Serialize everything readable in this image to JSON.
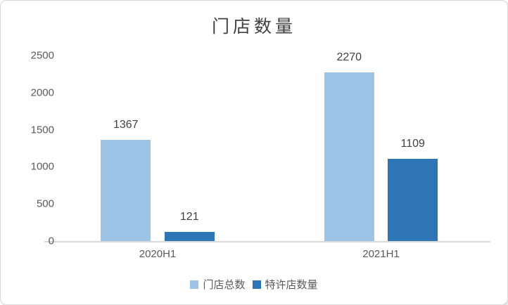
{
  "chart_data": {
    "type": "bar",
    "title": "门店数量",
    "categories": [
      "2020H1",
      "2021H1"
    ],
    "series": [
      {
        "name": "门店总数",
        "color": "#9DC3E6",
        "values": [
          1367,
          2270
        ]
      },
      {
        "name": "特许店数量",
        "color": "#2E75B6",
        "values": [
          121,
          1109
        ]
      }
    ],
    "y_ticks": [
      0,
      500,
      1000,
      1500,
      2000,
      2500
    ],
    "ylim": [
      0,
      2500
    ],
    "grid": false,
    "legend_position": "bottom",
    "data_labels_shown": true,
    "colors": {
      "title_text": "#404040",
      "axis_text": "#595959",
      "axis_line": "#D9D9D9",
      "background": "#FFFFFF",
      "border": "#D7D7D7"
    }
  }
}
